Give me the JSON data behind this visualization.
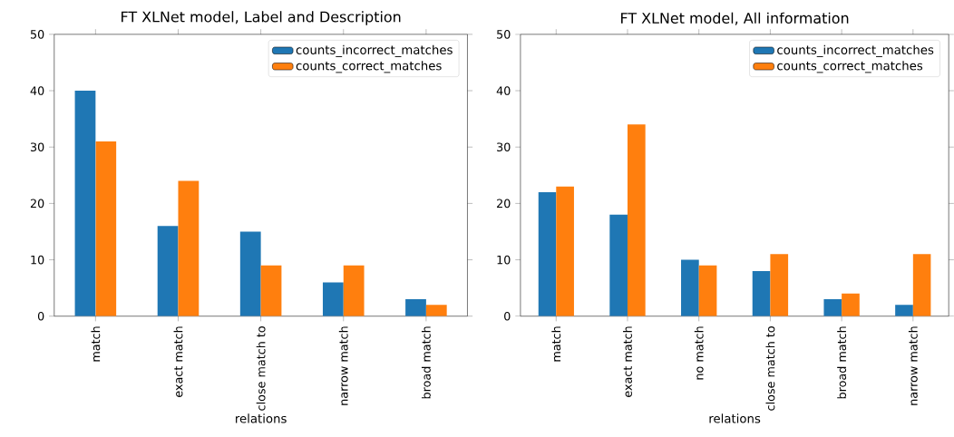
{
  "chart_data": [
    {
      "type": "bar",
      "title": "FT XLNet model, Label and Description",
      "xlabel": "relations",
      "categories": [
        "match",
        "exact match",
        "close match to",
        "narrow match",
        "broad match"
      ],
      "series": [
        {
          "name": "counts_incorrect_matches",
          "color": "#1f77b4",
          "values": [
            40,
            16,
            15,
            6,
            3
          ]
        },
        {
          "name": "counts_correct_matches",
          "color": "#ff7f0e",
          "values": [
            31,
            24,
            9,
            9,
            2
          ]
        }
      ],
      "ylim": [
        0,
        50
      ],
      "yticks": [
        0,
        10,
        20,
        30,
        40,
        50
      ],
      "legend": "top right",
      "grid": false
    },
    {
      "type": "bar",
      "title": "FT XLNet model, All information",
      "xlabel": "relations",
      "categories": [
        "match",
        "exact match",
        "no match",
        "close match to",
        "broad match",
        "narrow match"
      ],
      "series": [
        {
          "name": "counts_incorrect_matches",
          "color": "#1f77b4",
          "values": [
            22,
            18,
            10,
            8,
            3,
            2
          ]
        },
        {
          "name": "counts_correct_matches",
          "color": "#ff7f0e",
          "values": [
            23,
            34,
            9,
            11,
            4,
            11
          ]
        }
      ],
      "ylim": [
        0,
        50
      ],
      "yticks": [
        0,
        10,
        20,
        30,
        40,
        50
      ],
      "legend": "top right",
      "grid": false
    }
  ]
}
